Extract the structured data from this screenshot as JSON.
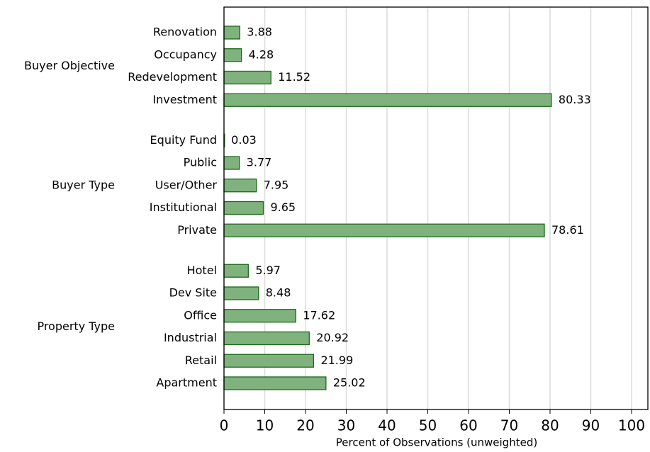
{
  "chart_data": {
    "type": "grouped-hbar",
    "xlabel": "Percent of Observations (unweighted)",
    "groups": [
      {
        "label": "Buyer Objective",
        "categories": [
          "Renovation",
          "Occupancy",
          "Redevelopment",
          "Investment"
        ],
        "values": [
          3.88,
          4.28,
          11.52,
          80.33
        ]
      },
      {
        "label": "Buyer Type",
        "categories": [
          "Equity Fund",
          "Public",
          "User/Other",
          "Institutional",
          "Private"
        ],
        "values": [
          0.03,
          3.77,
          7.95,
          9.65,
          78.61
        ]
      },
      {
        "label": "Property Type",
        "categories": [
          "Hotel",
          "Dev Site",
          "Office",
          "Industrial",
          "Retail",
          "Apartment"
        ],
        "values": [
          5.97,
          8.48,
          17.62,
          20.92,
          21.99,
          25.02
        ]
      }
    ],
    "color": "#80b27e",
    "edgecolor": "#1a6b1a",
    "xlim": [
      0,
      104
    ],
    "xticks": [
      0,
      10,
      20,
      30,
      40,
      50,
      60,
      70,
      80,
      90,
      100
    ],
    "grid": true
  }
}
